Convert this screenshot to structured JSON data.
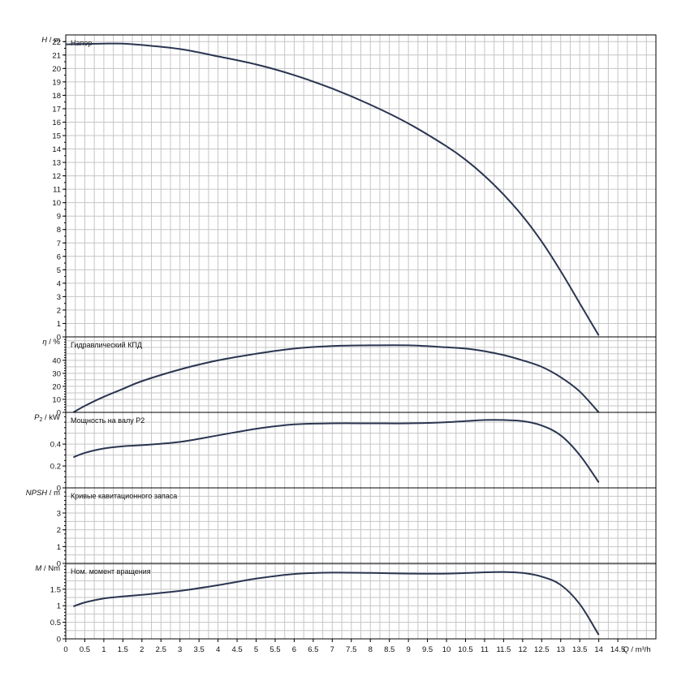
{
  "colors": {
    "curve": "#2a3550",
    "grid": "#c6c6c6",
    "axis": "#000000"
  },
  "chart_data": [
    {
      "type": "line",
      "ylabel_symbol": "H",
      "ylabel_unit": "m",
      "annotation": "Напор",
      "xlim": [
        0,
        15.5
      ],
      "ylim": [
        0,
        22.5
      ],
      "yticks": [
        "0",
        "1",
        "2",
        "3",
        "4",
        "5",
        "6",
        "7",
        "8",
        "9",
        "10",
        "11",
        "12",
        "13",
        "14",
        "15",
        "16",
        "17",
        "18",
        "19",
        "20",
        "21",
        "22"
      ],
      "grid": true,
      "series": [
        {
          "x": [
            0,
            1,
            1.5,
            2,
            3,
            4,
            5,
            6,
            7,
            8,
            9,
            10,
            10.5,
            11,
            11.5,
            12,
            12.5,
            13,
            13.5,
            14
          ],
          "y": [
            21.8,
            21.85,
            21.85,
            21.75,
            21.45,
            20.9,
            20.3,
            19.5,
            18.5,
            17.3,
            15.9,
            14.2,
            13.2,
            12.0,
            10.6,
            9.0,
            7.1,
            4.9,
            2.5,
            0.1
          ]
        }
      ]
    },
    {
      "type": "line",
      "ylabel_symbol": "η",
      "ylabel_unit": "%",
      "annotation": "Гидравлический КПД",
      "xlim": [
        0,
        15.5
      ],
      "ylim": [
        0,
        58
      ],
      "yticks": [
        "0",
        "10",
        "20",
        "30",
        "40"
      ],
      "grid": true,
      "series": [
        {
          "x": [
            0.2,
            0.5,
            1,
            1.5,
            2,
            3,
            4,
            5,
            6,
            7,
            8,
            9,
            10,
            10.5,
            11,
            11.5,
            12,
            12.5,
            13,
            13.5,
            14
          ],
          "y": [
            0,
            5,
            12,
            18,
            24,
            33,
            40,
            45,
            49,
            51,
            51.5,
            51.5,
            50,
            49,
            47,
            44,
            40,
            35,
            27,
            16,
            0
          ]
        }
      ]
    },
    {
      "type": "line",
      "ylabel_symbol": "P",
      "ylabel_sub": "2",
      "ylabel_unit": "kW",
      "annotation": "Мощность на валу P2",
      "xlim": [
        0,
        15.5
      ],
      "ylim": [
        0,
        0.69
      ],
      "yticks": [
        "0",
        "0.2",
        "0.4"
      ],
      "grid": true,
      "series": [
        {
          "x": [
            0.2,
            0.5,
            1,
            1.5,
            2,
            3,
            4,
            5,
            6,
            7,
            8,
            9,
            10,
            11,
            11.5,
            12,
            12.5,
            13,
            13.5,
            14
          ],
          "y": [
            0.28,
            0.32,
            0.36,
            0.38,
            0.39,
            0.42,
            0.48,
            0.54,
            0.58,
            0.59,
            0.59,
            0.59,
            0.6,
            0.62,
            0.62,
            0.61,
            0.57,
            0.48,
            0.3,
            0.05
          ]
        }
      ]
    },
    {
      "type": "line",
      "ylabel_symbol": "NPSH",
      "ylabel_unit": "m",
      "annotation": "Кривые кавитационного запаса",
      "xlim": [
        0,
        15.5
      ],
      "ylim": [
        0,
        4.5
      ],
      "yticks": [
        "0",
        "1",
        "2",
        "3"
      ],
      "grid": true,
      "series": []
    },
    {
      "type": "line",
      "ylabel_symbol": "M",
      "ylabel_unit": "Nm",
      "annotation": "Ном. момент вращения",
      "xlim": [
        0,
        15.5
      ],
      "ylim": [
        0,
        2.28
      ],
      "yticks": [
        "0",
        "0.5",
        "1",
        "1.5"
      ],
      "xticks": [
        "0",
        "0.5",
        "1",
        "1.5",
        "2",
        "2.5",
        "3",
        "3.5",
        "4",
        "4.5",
        "5",
        "5.5",
        "6",
        "6.5",
        "7",
        "7.5",
        "8",
        "8.5",
        "9",
        "9.5",
        "10",
        "10.5",
        "11",
        "11.5",
        "12",
        "12.5",
        "13",
        "13.5",
        "14",
        "14.5"
      ],
      "xlabel_symbol": "Q",
      "xlabel_unit": "m³/h",
      "grid": true,
      "series": [
        {
          "x": [
            0.2,
            0.5,
            1,
            1.5,
            2,
            3,
            4,
            5,
            6,
            7,
            8,
            9,
            10,
            11,
            11.5,
            12,
            12.5,
            13,
            13.5,
            14
          ],
          "y": [
            0.98,
            1.1,
            1.22,
            1.28,
            1.33,
            1.45,
            1.62,
            1.82,
            1.96,
            2.0,
            1.99,
            1.97,
            1.97,
            2.01,
            2.02,
            1.99,
            1.88,
            1.63,
            1.05,
            0.12
          ]
        }
      ]
    }
  ]
}
